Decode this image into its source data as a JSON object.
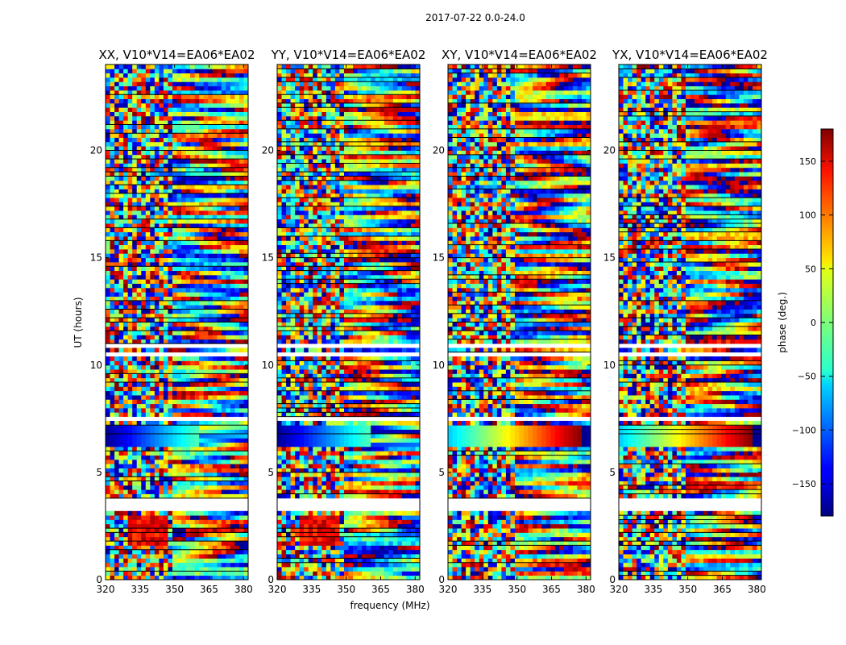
{
  "chart_data": {
    "type": "heatmap",
    "suptitle": "2017-07-22 0.0-24.0",
    "xlabel": "frequency (MHz)",
    "ylabel": "UT (hours)",
    "xlim": [
      320,
      382
    ],
    "ylim": [
      0,
      24
    ],
    "xticks": [
      320,
      335,
      350,
      365,
      380
    ],
    "yticks": [
      0,
      5,
      10,
      15,
      20
    ],
    "panels": [
      {
        "title": "XX, V10*V14=EA06*EA02",
        "polarization": "XX"
      },
      {
        "title": "YY, V10*V14=EA06*EA02",
        "polarization": "YY"
      },
      {
        "title": "XY, V10*V14=EA06*EA02",
        "polarization": "XY"
      },
      {
        "title": "YX, V10*V14=EA06*EA02",
        "polarization": "YX"
      }
    ],
    "colorbar": {
      "label": "phase (deg.)",
      "range": [
        -180,
        180
      ],
      "ticks": [
        150,
        100,
        50,
        0,
        -50,
        -100,
        -150
      ],
      "tick_labels": [
        "150",
        "100",
        "50",
        "0",
        "−50",
        "−100",
        "−150"
      ],
      "colormap": "jet"
    },
    "flagged_bands_hours": [
      [
        3.3,
        3.8
      ],
      [
        7.3,
        7.5
      ],
      [
        10.3,
        10.5
      ],
      [
        10.9,
        11.1
      ]
    ],
    "strong_feature_hours": [
      6.2,
      7.2
    ]
  }
}
